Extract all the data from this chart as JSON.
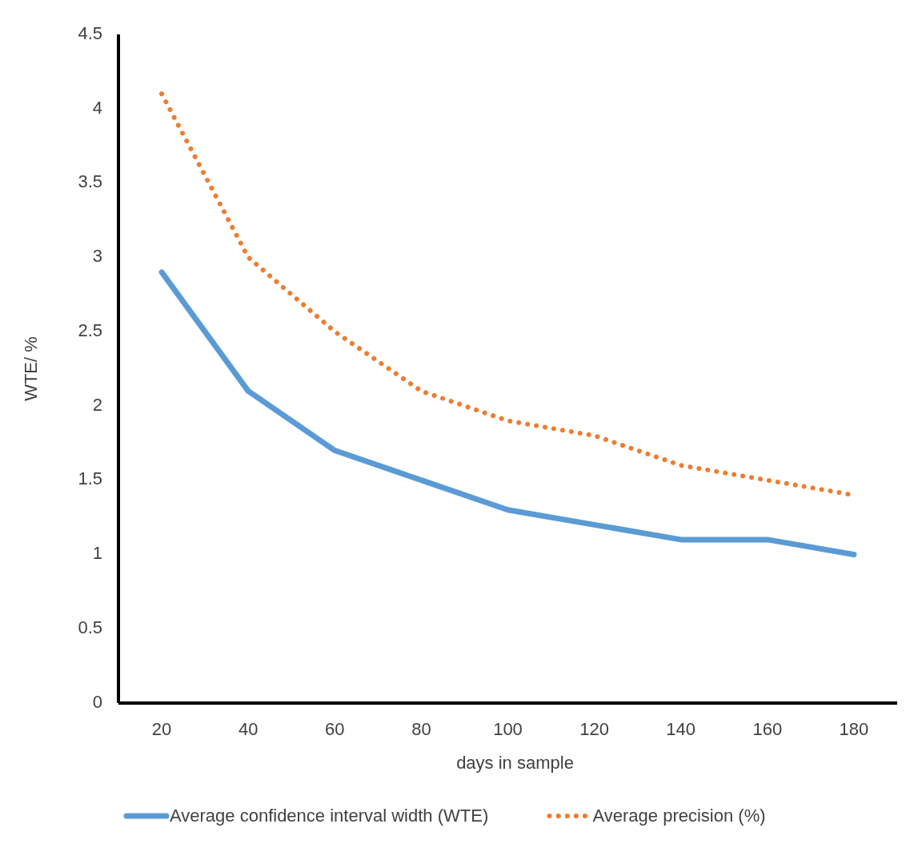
{
  "chart_data": {
    "type": "line",
    "xlabel": "days in sample",
    "ylabel": "WTE/ %",
    "categories": [
      "20",
      "40",
      "60",
      "80",
      "100",
      "120",
      "140",
      "160",
      "180"
    ],
    "series": [
      {
        "name": "Average confidence interval width (WTE)",
        "color": "#5b9bd5",
        "line_style": "solid",
        "values": [
          2.9,
          2.1,
          1.7,
          1.5,
          1.3,
          1.2,
          1.1,
          1.1,
          1.0
        ]
      },
      {
        "name": "Average precision (%)",
        "color": "#ed7d31",
        "line_style": "dotted",
        "values": [
          4.1,
          3.0,
          2.5,
          2.1,
          1.9,
          1.8,
          1.6,
          1.5,
          1.4
        ]
      }
    ],
    "ylim": [
      0,
      4.5
    ],
    "yticks": [
      0,
      {
        "value": 0.5,
        "label": "0.5"
      },
      1,
      {
        "value": 1.5,
        "label": "1.5"
      },
      2,
      {
        "value": 2.5,
        "label": "2.5"
      },
      3,
      {
        "value": 3.5,
        "label": "3.5"
      },
      4,
      {
        "value": 4.5,
        "label": "4.5"
      }
    ],
    "grid": false,
    "legend": "bottom",
    "marker": "none"
  }
}
